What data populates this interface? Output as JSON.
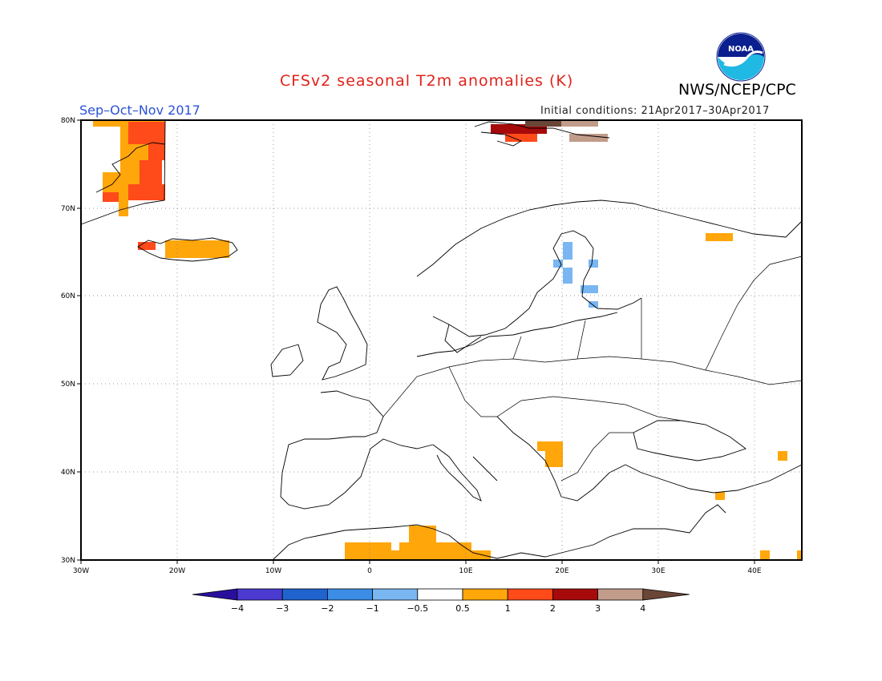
{
  "title": "CFSv2 seasonal T2m anomalies (K)",
  "season": "Sep–Oct–Nov 2017",
  "initial_conditions": "Initial conditions: 21Apr2017–30Apr2017",
  "agency": "NWS/NCEP/CPC",
  "logo_text": "NOAA",
  "lat_labels": [
    "80N",
    "70N",
    "60N",
    "50N",
    "40N",
    "30N"
  ],
  "lon_labels": [
    "30W",
    "20W",
    "10W",
    "0",
    "10E",
    "20E",
    "30E",
    "40E"
  ],
  "colorbar": {
    "labels": [
      "−4",
      "−3",
      "−2",
      "−1",
      "−0.5",
      "0.5",
      "1",
      "2",
      "3",
      "4"
    ],
    "colors": [
      "#2a0f9e",
      "#4a3ad0",
      "#1f63cf",
      "#3b8de6",
      "#79b6f2",
      "#ffffff",
      "#ffa60a",
      "#ff4a1a",
      "#a70a0a",
      "#c29c8a",
      "#6a4637"
    ]
  },
  "map": {
    "region": "Europe / North Atlantic",
    "lon_range": [
      -30,
      45
    ],
    "lat_range": [
      30,
      80
    ],
    "grid": true,
    "background": "#ffffff"
  }
}
